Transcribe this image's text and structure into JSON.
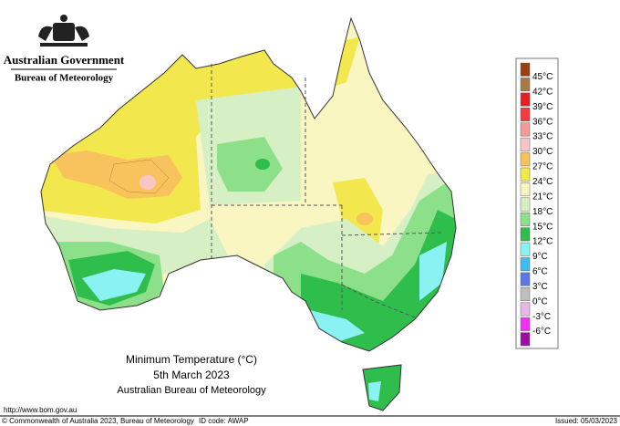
{
  "header": {
    "government": "Australian Government",
    "agency": "Bureau of Meteorology"
  },
  "map": {
    "title": "Minimum Temperature (°C)",
    "date": "5th March 2023",
    "source": "Australian Bureau of Meteorology"
  },
  "legend": {
    "labels": [
      "45°C",
      "42°C",
      "39°C",
      "36°C",
      "33°C",
      "30°C",
      "27°C",
      "24°C",
      "21°C",
      "18°C",
      "15°C",
      "12°C",
      "9°C",
      "6°C",
      "3°C",
      "0°C",
      "-3°C",
      "-6°C"
    ],
    "colors": [
      "#9c3d12",
      "#a97a45",
      "#ec1c24",
      "#f53c3c",
      "#f7999a",
      "#f9c6c6",
      "#f8c25c",
      "#f2e84e",
      "#faf6c2",
      "#d7efc5",
      "#8de08a",
      "#2fbe4b",
      "#8af2f2",
      "#3dbdf0",
      "#5b79e6",
      "#bfbfbf",
      "#e6b6e6",
      "#f52ef5",
      "#9a0fa0"
    ]
  },
  "footer": {
    "url": "http://www.bom.gov.au",
    "copyright": "© Commonwealth of Australia 2023, Bureau of Meteorology",
    "id_code": "ID code: AWAP",
    "issued": "Issued: 05/03/2023"
  }
}
